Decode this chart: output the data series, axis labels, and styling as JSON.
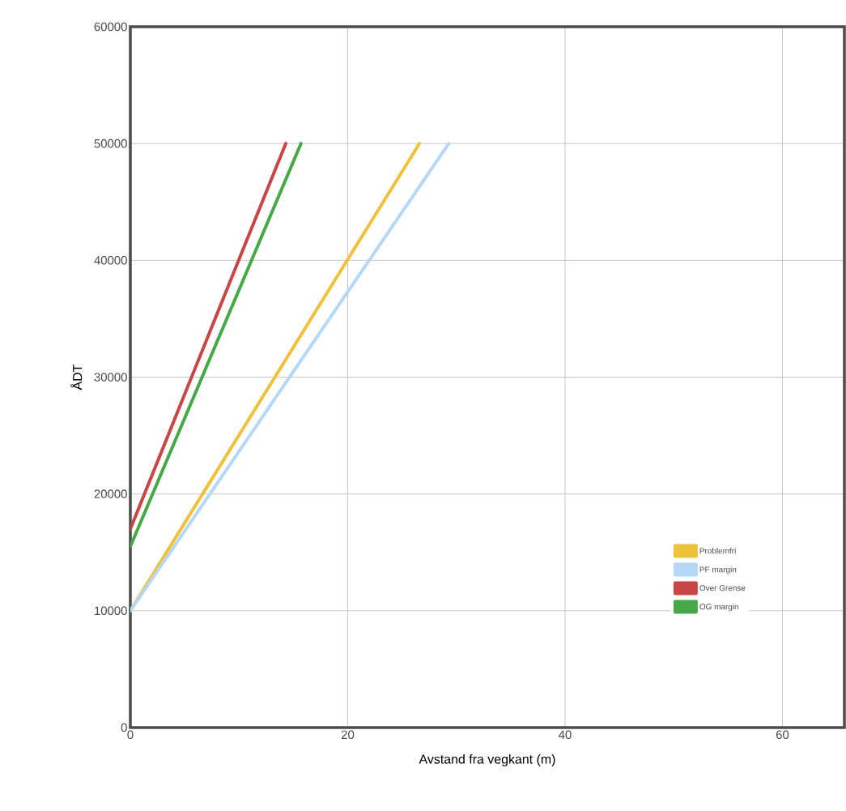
{
  "chart_data": {
    "type": "line",
    "xlabel": "Avstand fra vegkant (m)",
    "ylabel": "ÅDT",
    "xlim": [
      0,
      65.7
    ],
    "ylim": [
      0,
      60000
    ],
    "xticks": [
      0,
      20,
      40,
      60
    ],
    "yticks": [
      0,
      10000,
      20000,
      30000,
      40000,
      50000,
      60000
    ],
    "grid": true,
    "legend": "bottom right",
    "marker": "none",
    "line_style": "solid",
    "series": [
      {
        "name": "Problemfri",
        "color": "#f0c23c",
        "x": [
          0,
          26.6
        ],
        "values": [
          10000,
          50000
        ]
      },
      {
        "name": "PF margin",
        "color": "#b4d8f5",
        "x": [
          0,
          29.3
        ],
        "values": [
          10000,
          50000
        ]
      },
      {
        "name": "Over Grense",
        "color": "#c84646",
        "x": [
          0,
          14.3
        ],
        "values": [
          17000,
          50000
        ]
      },
      {
        "name": "OG margin",
        "color": "#46a846",
        "x": [
          0,
          15.7
        ],
        "values": [
          15500,
          50000
        ]
      }
    ]
  }
}
